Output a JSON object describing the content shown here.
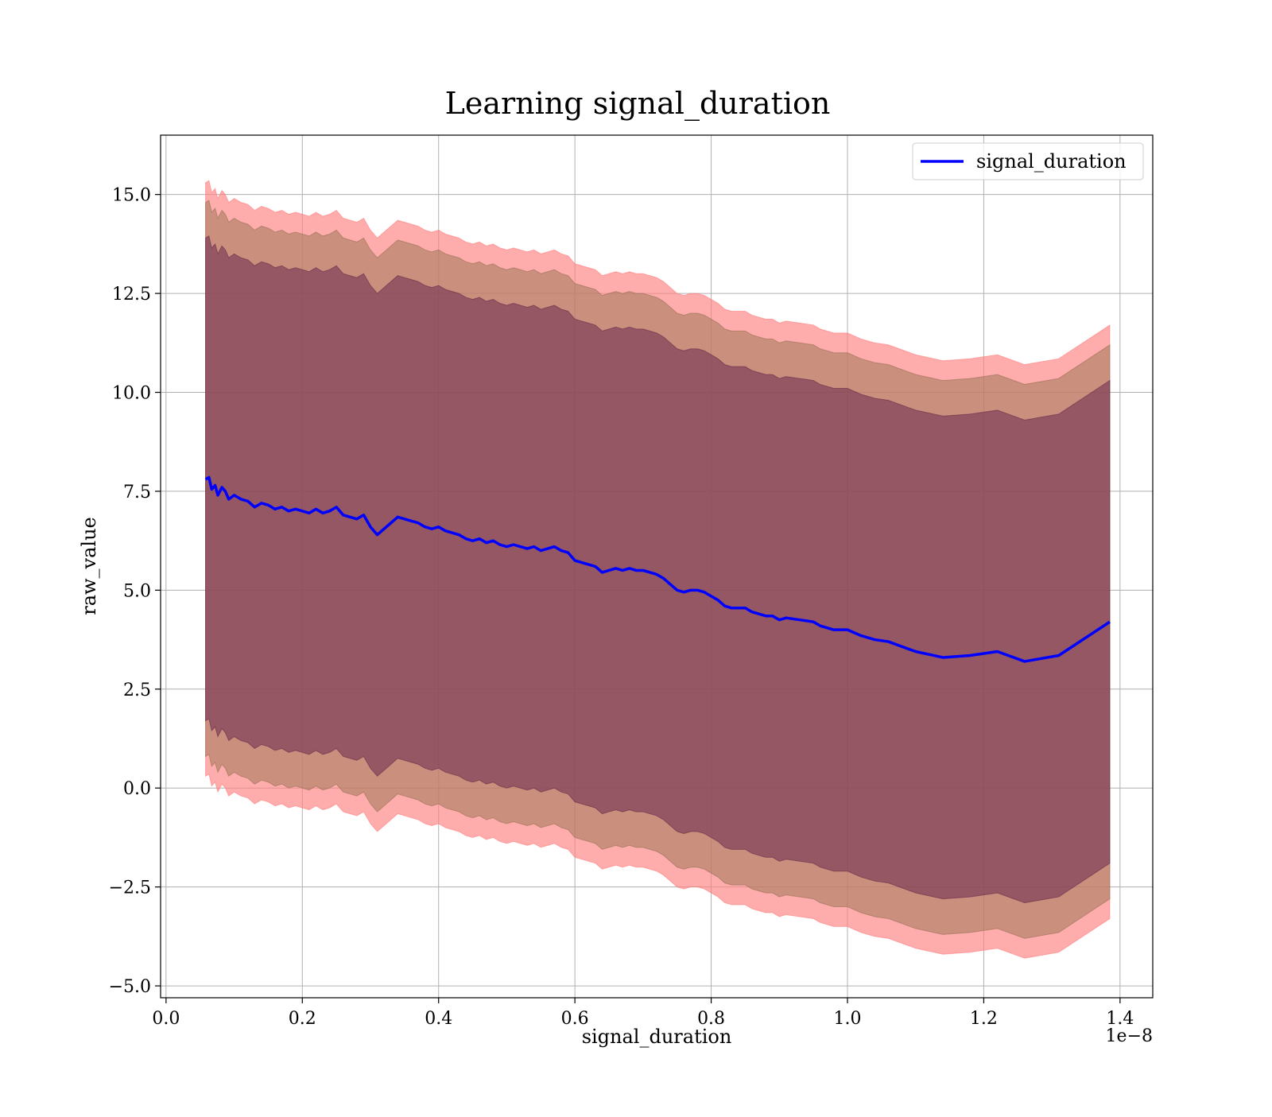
{
  "chart_data": {
    "type": "area",
    "title": "Learning signal_duration",
    "xlabel": "signal_duration",
    "ylabel": "raw_value",
    "x_offset_text": "1e−8",
    "xlim": [
      -0.008,
      1.448
    ],
    "ylim": [
      -5.3,
      16.5
    ],
    "xticks": [
      0.0,
      0.2,
      0.4,
      0.6,
      0.8,
      1.0,
      1.2,
      1.4
    ],
    "xtick_labels": [
      "0.0",
      "0.2",
      "0.4",
      "0.6",
      "0.8",
      "1.0",
      "1.2",
      "1.4"
    ],
    "yticks": [
      -5.0,
      -2.5,
      0.0,
      2.5,
      5.0,
      7.5,
      10.0,
      12.5,
      15.0
    ],
    "ytick_labels": [
      "−5.0",
      "−2.5",
      "0.0",
      "2.5",
      "5.0",
      "7.5",
      "10.0",
      "12.5",
      "15.0"
    ],
    "grid": true,
    "legend": {
      "location": "top-right",
      "entries": [
        "signal_duration"
      ]
    },
    "colors": {
      "line": "#0000ff",
      "band_outer": "#ff8080",
      "band_middle": "#a0785a",
      "band_inner": "#6a2a4e",
      "grid": "#b0b0b0"
    },
    "series": [
      {
        "name": "signal_duration",
        "x": [
          0.058,
          0.063,
          0.067,
          0.072,
          0.076,
          0.082,
          0.087,
          0.092,
          0.1,
          0.11,
          0.12,
          0.13,
          0.14,
          0.15,
          0.16,
          0.17,
          0.18,
          0.19,
          0.2,
          0.21,
          0.22,
          0.23,
          0.24,
          0.25,
          0.26,
          0.27,
          0.28,
          0.29,
          0.3,
          0.31,
          0.32,
          0.33,
          0.34,
          0.35,
          0.36,
          0.37,
          0.38,
          0.39,
          0.4,
          0.41,
          0.42,
          0.43,
          0.44,
          0.45,
          0.46,
          0.47,
          0.48,
          0.49,
          0.5,
          0.51,
          0.52,
          0.53,
          0.54,
          0.55,
          0.56,
          0.57,
          0.58,
          0.59,
          0.6,
          0.61,
          0.62,
          0.63,
          0.64,
          0.65,
          0.66,
          0.67,
          0.68,
          0.69,
          0.7,
          0.71,
          0.72,
          0.73,
          0.74,
          0.75,
          0.76,
          0.77,
          0.78,
          0.79,
          0.8,
          0.81,
          0.82,
          0.83,
          0.85,
          0.86,
          0.88,
          0.89,
          0.9,
          0.91,
          0.93,
          0.95,
          0.96,
          0.98,
          1.0,
          1.02,
          1.04,
          1.06,
          1.1,
          1.14,
          1.18,
          1.22,
          1.26,
          1.31,
          1.385
        ],
        "y": [
          7.8,
          7.85,
          7.55,
          7.65,
          7.4,
          7.6,
          7.5,
          7.3,
          7.4,
          7.3,
          7.25,
          7.1,
          7.2,
          7.15,
          7.05,
          7.1,
          7.0,
          7.05,
          7.0,
          6.95,
          7.05,
          6.95,
          7.0,
          7.1,
          6.9,
          6.85,
          6.8,
          6.9,
          6.6,
          6.4,
          6.55,
          6.7,
          6.85,
          6.8,
          6.75,
          6.7,
          6.6,
          6.55,
          6.6,
          6.5,
          6.45,
          6.4,
          6.3,
          6.25,
          6.3,
          6.2,
          6.25,
          6.15,
          6.1,
          6.15,
          6.1,
          6.05,
          6.1,
          6.0,
          6.05,
          6.1,
          6.0,
          5.95,
          5.75,
          5.7,
          5.65,
          5.6,
          5.45,
          5.5,
          5.55,
          5.5,
          5.55,
          5.5,
          5.5,
          5.45,
          5.4,
          5.3,
          5.15,
          5.0,
          4.95,
          5.0,
          5.0,
          4.95,
          4.85,
          4.75,
          4.6,
          4.55,
          4.55,
          4.45,
          4.35,
          4.35,
          4.25,
          4.3,
          4.25,
          4.2,
          4.1,
          4.0,
          4.0,
          3.85,
          3.75,
          3.7,
          3.45,
          3.3,
          3.35,
          3.45,
          3.2,
          3.35,
          4.2
        ]
      }
    ],
    "bands": [
      {
        "label": "outer",
        "upper_offset": 7.5,
        "lower_offset": 7.5
      },
      {
        "label": "middle",
        "upper_offset": 7.0,
        "lower_offset": 7.0
      },
      {
        "label": "inner",
        "upper_offset": 6.1,
        "lower_offset": 6.1
      }
    ]
  }
}
